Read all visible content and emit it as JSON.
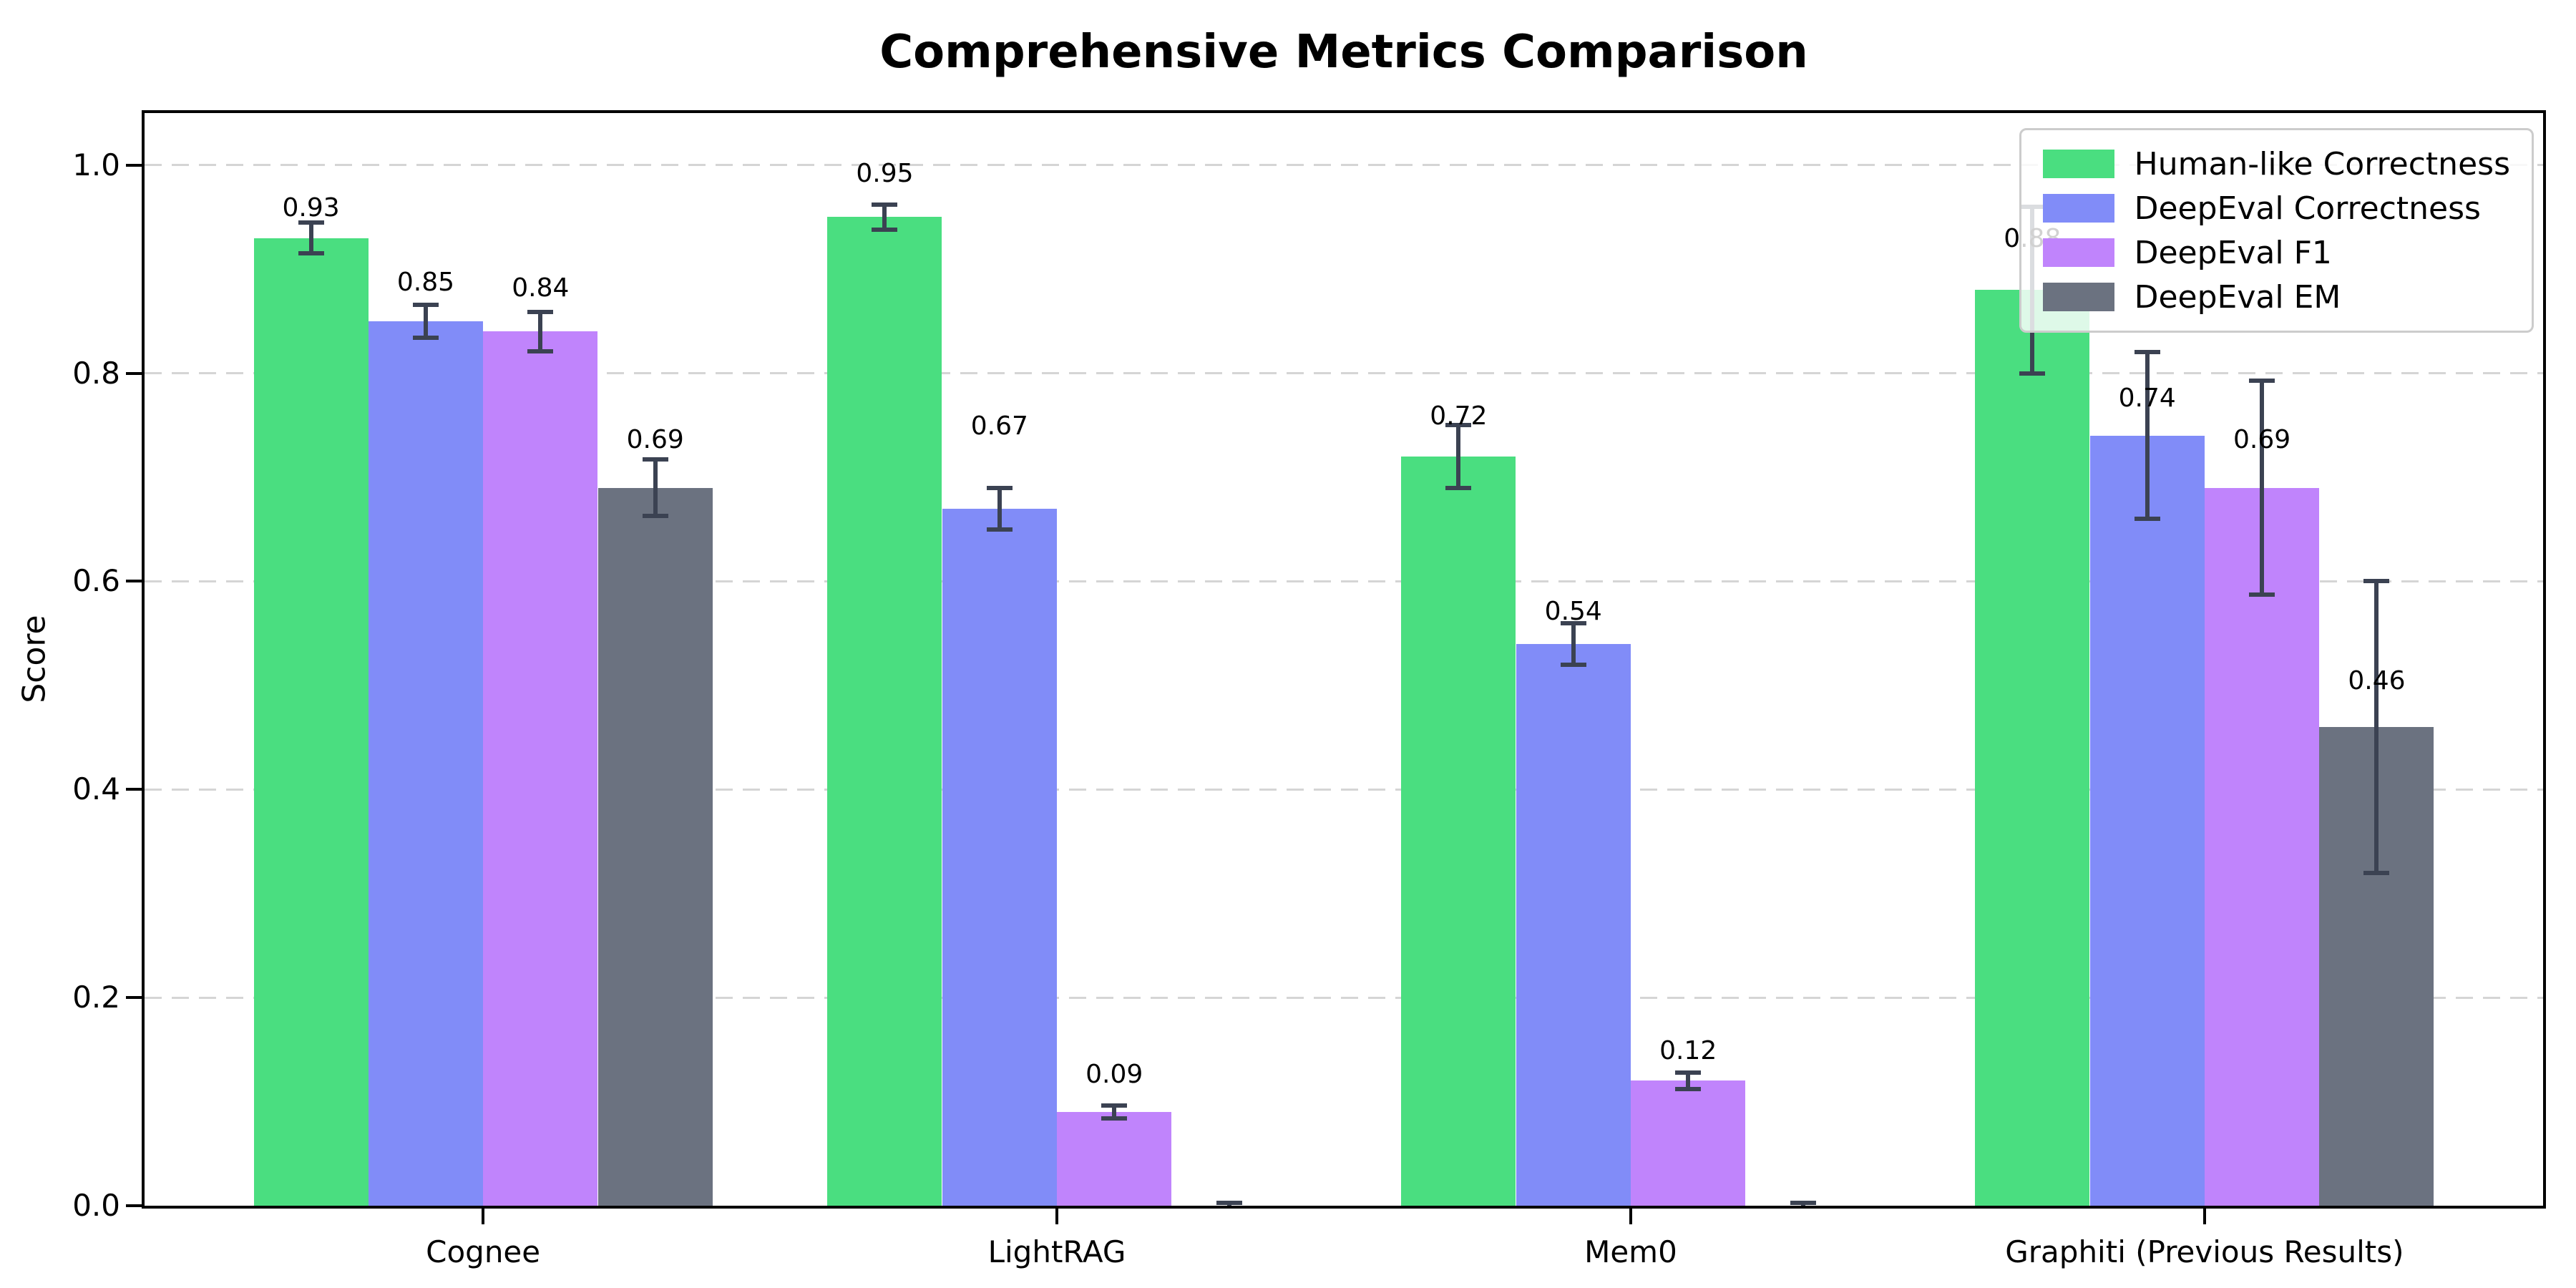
{
  "chart_data": {
    "type": "bar",
    "title": "Comprehensive Metrics Comparison",
    "ylabel": "Score",
    "xlabel": "",
    "ylim": [
      0,
      1.05
    ],
    "yticks": [
      0,
      0.2,
      0.4,
      0.6,
      0.8,
      1.0
    ],
    "grid": "horizontal dashed gridlines",
    "grid_color": "#d5d5d5",
    "axis_color": "#000000",
    "error_bar_color": "#3b4252",
    "legend_position": "upper right",
    "categories": [
      "Cognee",
      "LightRAG",
      "Mem0",
      "Graphiti (Previous Results)"
    ],
    "series": [
      {
        "name": "Human-like Correctness",
        "color": "#4ade80",
        "values": [
          0.93,
          0.95,
          0.72,
          0.88
        ],
        "errors": [
          0.015,
          0.012,
          0.03,
          0.08
        ],
        "labels": [
          "0.93",
          "0.95",
          "0.72",
          "0.88"
        ],
        "label_y": [
          0.945,
          0.978,
          0.745,
          0.915
        ]
      },
      {
        "name": "DeepEval Correctness",
        "color": "#818cf8",
        "values": [
          0.85,
          0.67,
          0.54,
          0.74
        ],
        "errors": [
          0.016,
          0.02,
          0.02,
          0.08
        ],
        "labels": [
          "0.85",
          "0.67",
          "0.54",
          "0.74"
        ],
        "label_y": [
          0.873,
          0.735,
          0.557,
          0.762
        ]
      },
      {
        "name": "DeepEval F1",
        "color": "#c084fc",
        "values": [
          0.84,
          0.09,
          0.12,
          0.69
        ],
        "errors": [
          0.019,
          0.006,
          0.008,
          0.103
        ],
        "labels": [
          "0.84",
          "0.09",
          "0.12",
          "0.69"
        ],
        "label_y": [
          0.868,
          0.112,
          0.135,
          0.722
        ]
      },
      {
        "name": "DeepEval EM",
        "color": "#6b7280",
        "values": [
          0.69,
          0.0,
          0.0,
          0.46
        ],
        "errors": [
          0.027,
          0.003,
          0.003,
          0.14
        ],
        "labels": [
          "0.69",
          "",
          "",
          "0.46"
        ],
        "label_y": [
          0.722,
          0,
          0,
          0.49
        ]
      }
    ]
  }
}
